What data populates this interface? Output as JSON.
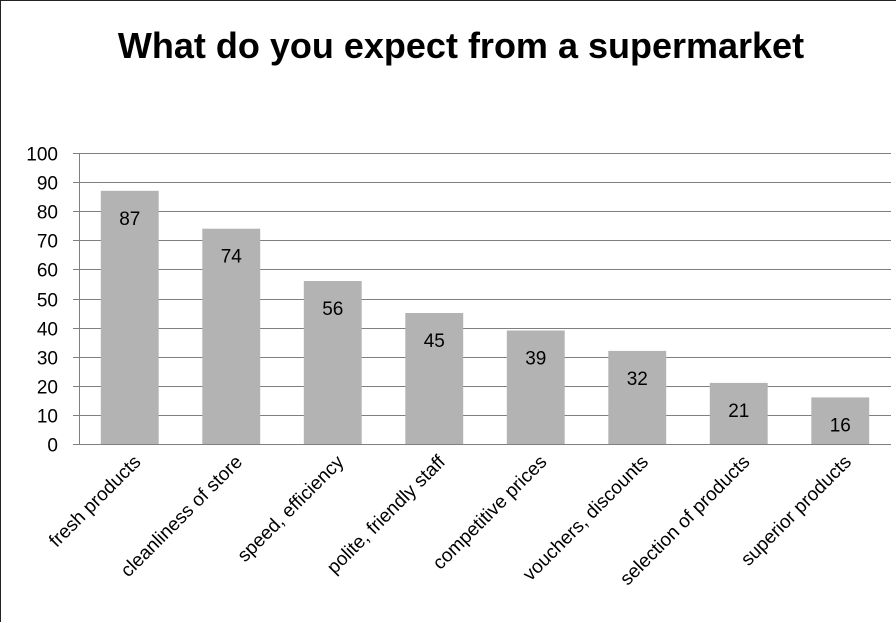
{
  "chart_data": {
    "type": "bar",
    "title": "What do you expect from a supermarket",
    "categories": [
      "fresh products",
      "cleanliness of store",
      "speed, efficiency",
      "polite, friendly staff",
      "competitive prices",
      "vouchers, discounts",
      "selection of products",
      "superior products"
    ],
    "values": [
      87,
      74,
      56,
      45,
      39,
      32,
      21,
      16
    ],
    "ylim": [
      0,
      100
    ],
    "yticks": [
      0,
      10,
      20,
      30,
      40,
      50,
      60,
      70,
      80,
      90,
      100
    ],
    "xlabel": "",
    "ylabel": "",
    "grid": true,
    "legend": "none",
    "data_labels": true,
    "colors": {
      "bar": "#b3b3b3",
      "grid": "#7f7f7f",
      "axis": "#7f7f7f",
      "text": "#000000"
    }
  }
}
